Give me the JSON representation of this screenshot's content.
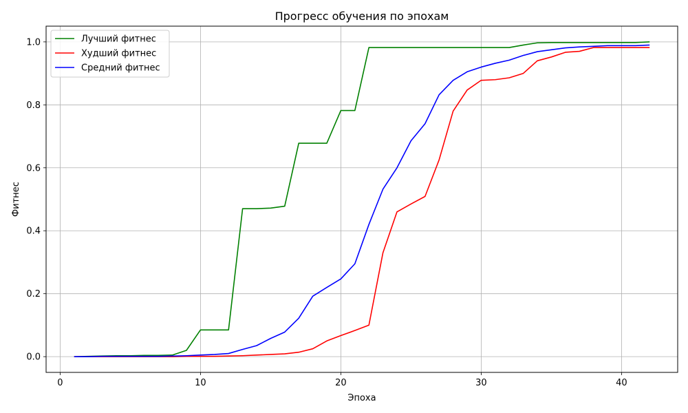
{
  "chart_data": {
    "type": "line",
    "title": "Прогресс обучения по эпохам",
    "xlabel": "Эпоха",
    "ylabel": "Фитнес",
    "xlim": [
      -1,
      44
    ],
    "ylim": [
      -0.05,
      1.05
    ],
    "xticks": [
      0,
      10,
      20,
      30,
      40
    ],
    "yticks": [
      0.0,
      0.2,
      0.4,
      0.6,
      0.8,
      1.0
    ],
    "xtick_labels": [
      "0",
      "10",
      "20",
      "30",
      "40"
    ],
    "ytick_labels": [
      "0.0",
      "0.2",
      "0.4",
      "0.6",
      "0.8",
      "1.0"
    ],
    "grid": true,
    "legend_position": "top-left",
    "x": [
      1,
      2,
      3,
      4,
      5,
      6,
      7,
      8,
      9,
      10,
      11,
      12,
      13,
      14,
      15,
      16,
      17,
      18,
      19,
      20,
      21,
      22,
      23,
      24,
      25,
      26,
      27,
      28,
      29,
      30,
      31,
      32,
      33,
      34,
      35,
      36,
      37,
      38,
      39,
      40,
      41,
      42
    ],
    "series": [
      {
        "name": "Лучший фитнес",
        "color": "#008000",
        "values": [
          0.0,
          0.001,
          0.002,
          0.003,
          0.003,
          0.004,
          0.004,
          0.005,
          0.02,
          0.085,
          0.085,
          0.085,
          0.47,
          0.47,
          0.472,
          0.478,
          0.678,
          0.678,
          0.678,
          0.782,
          0.782,
          0.982,
          0.982,
          0.982,
          0.982,
          0.982,
          0.982,
          0.982,
          0.982,
          0.982,
          0.982,
          0.982,
          0.99,
          0.997,
          0.998,
          0.998,
          0.998,
          0.998,
          0.998,
          0.998,
          0.998,
          1.0
        ]
      },
      {
        "name": "Худший фитнес",
        "color": "#ff0000",
        "values": [
          0.0,
          0.0,
          0.0,
          0.0,
          0.0,
          0.0,
          0.0,
          0.0,
          0.001,
          0.001,
          0.001,
          0.002,
          0.003,
          0.005,
          0.007,
          0.009,
          0.014,
          0.025,
          0.05,
          0.067,
          0.083,
          0.1,
          0.33,
          0.46,
          0.485,
          0.509,
          0.625,
          0.78,
          0.847,
          0.878,
          0.88,
          0.886,
          0.9,
          0.94,
          0.952,
          0.967,
          0.97,
          0.982,
          0.982,
          0.982,
          0.982,
          0.982
        ]
      },
      {
        "name": "Средний фитнес",
        "color": "#0000ff",
        "values": [
          0.0,
          0.0,
          0.001,
          0.001,
          0.001,
          0.001,
          0.001,
          0.002,
          0.003,
          0.005,
          0.007,
          0.01,
          0.023,
          0.035,
          0.058,
          0.078,
          0.122,
          0.192,
          0.22,
          0.247,
          0.295,
          0.42,
          0.532,
          0.6,
          0.686,
          0.74,
          0.832,
          0.878,
          0.905,
          0.92,
          0.932,
          0.942,
          0.957,
          0.969,
          0.975,
          0.981,
          0.984,
          0.986,
          0.988,
          0.988,
          0.988,
          0.99
        ]
      }
    ]
  }
}
